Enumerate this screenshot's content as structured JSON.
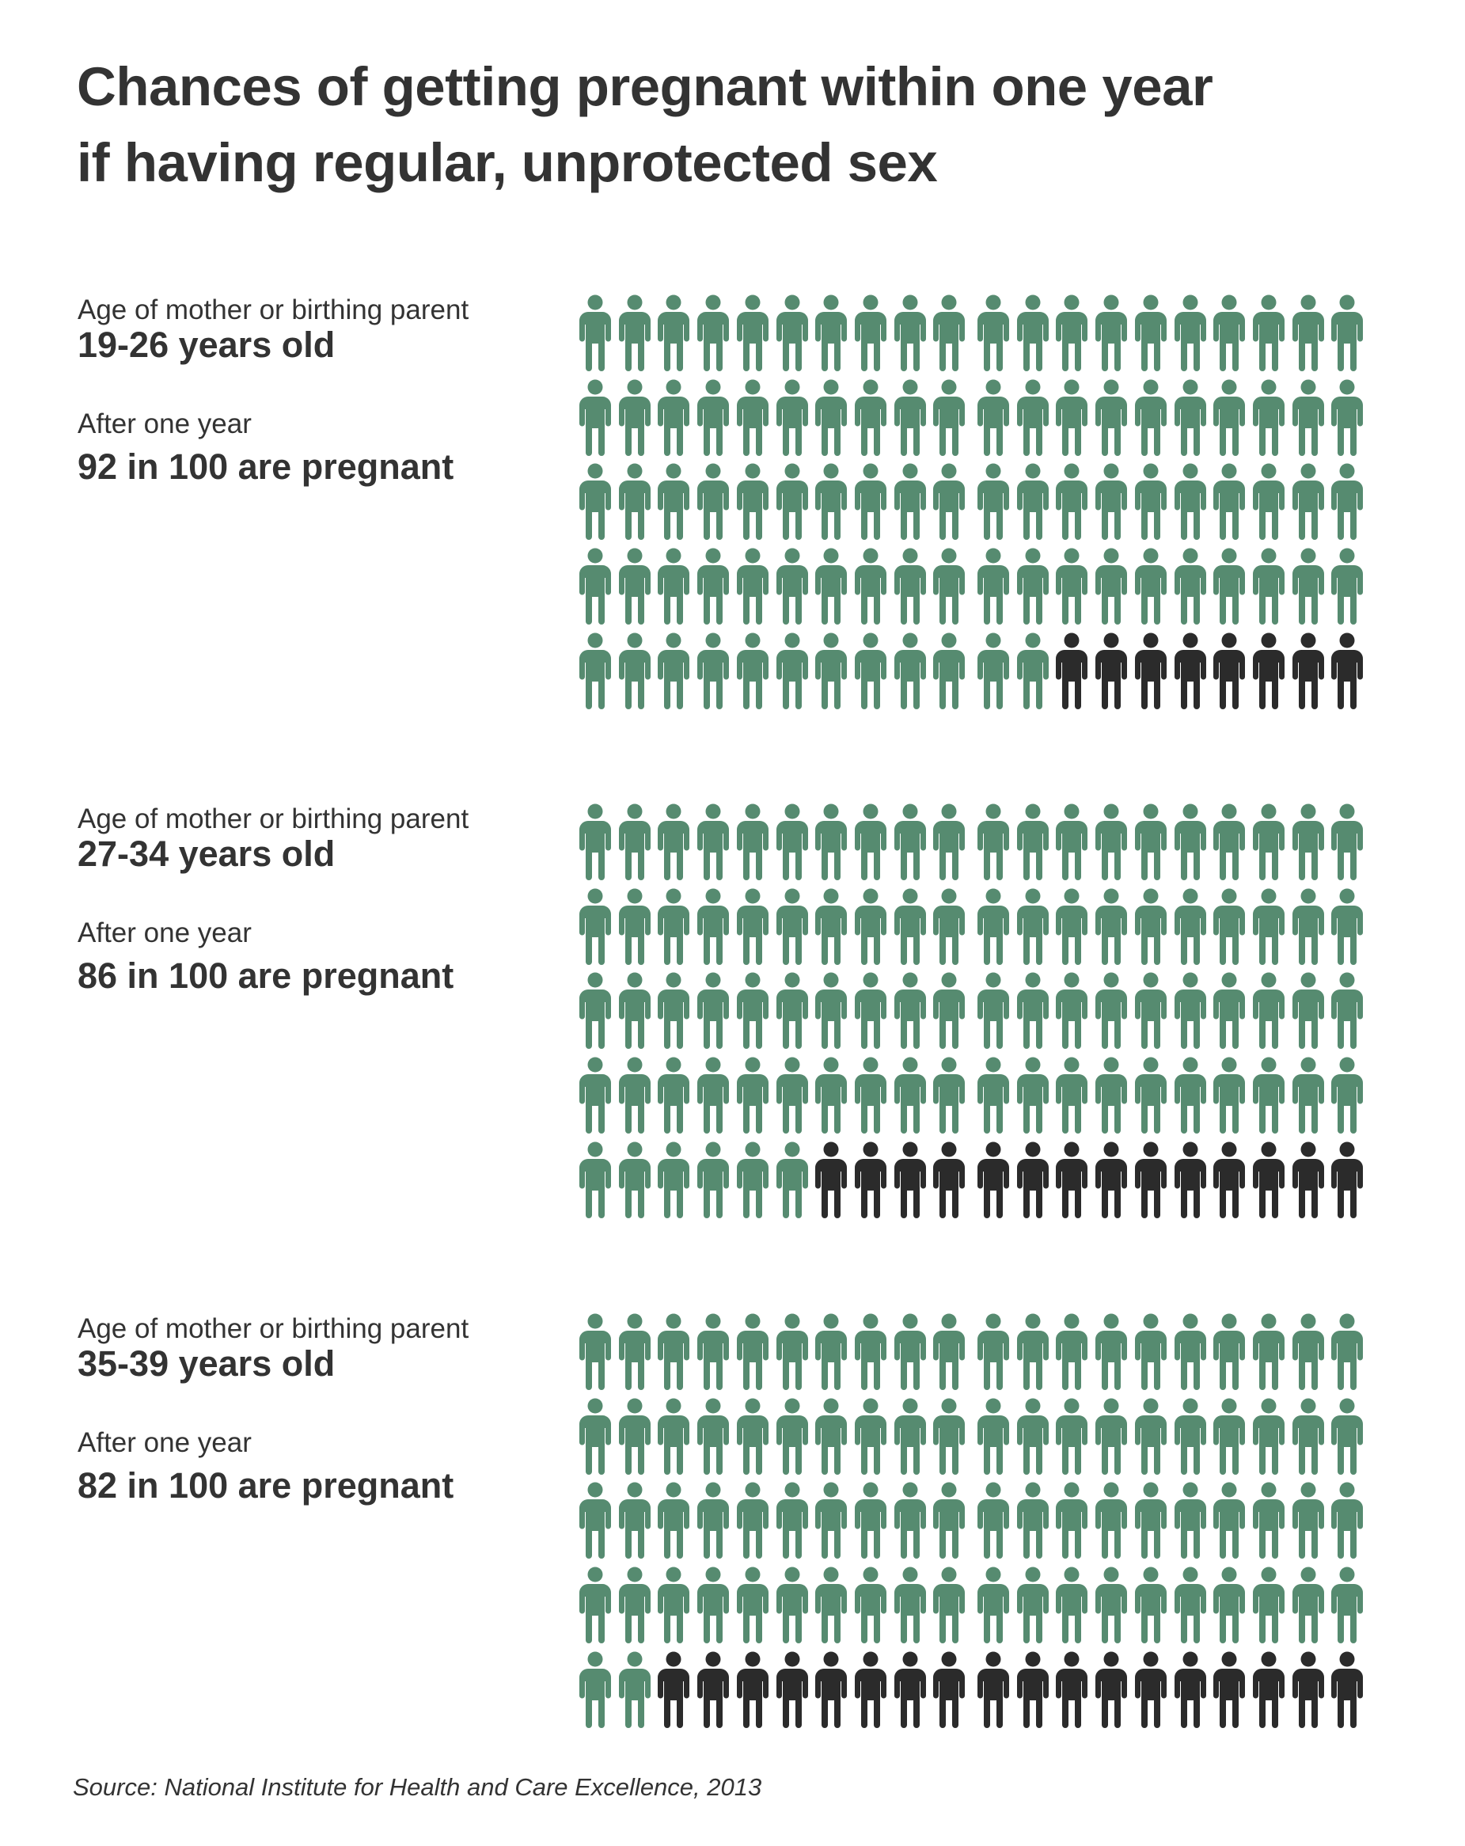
{
  "title": {
    "line1": "Chances of getting pregnant within one year",
    "line2": "if having regular, unprotected sex"
  },
  "colors": {
    "pregnant": "#568b70",
    "not_pregnant": "#2b2b2b"
  },
  "groups": [
    {
      "age_label": "Age of mother or birthing parent",
      "age": "19-26 years old",
      "after_label": "After one year",
      "result": "92 in 100 are pregnant"
    },
    {
      "age_label": "Age of mother or birthing parent",
      "age": "27-34 years old",
      "after_label": "After one year",
      "result": "86 in 100 are pregnant"
    },
    {
      "age_label": "Age of mother or birthing parent",
      "age": "35-39 years old",
      "after_label": "After one year",
      "result": "82 in 100 are pregnant"
    }
  ],
  "source": "Source: National Institute for Health and Care Excellence, 2013",
  "chart_data": [
    {
      "type": "pictogram",
      "category": "19-26 years old",
      "pregnant": 92,
      "total": 100,
      "rows": 5,
      "columns": 20
    },
    {
      "type": "pictogram",
      "category": "27-34 years old",
      "pregnant": 86,
      "total": 100,
      "rows": 5,
      "columns": 20
    },
    {
      "type": "pictogram",
      "category": "35-39 years old",
      "pregnant": 82,
      "total": 100,
      "rows": 5,
      "columns": 20
    }
  ]
}
